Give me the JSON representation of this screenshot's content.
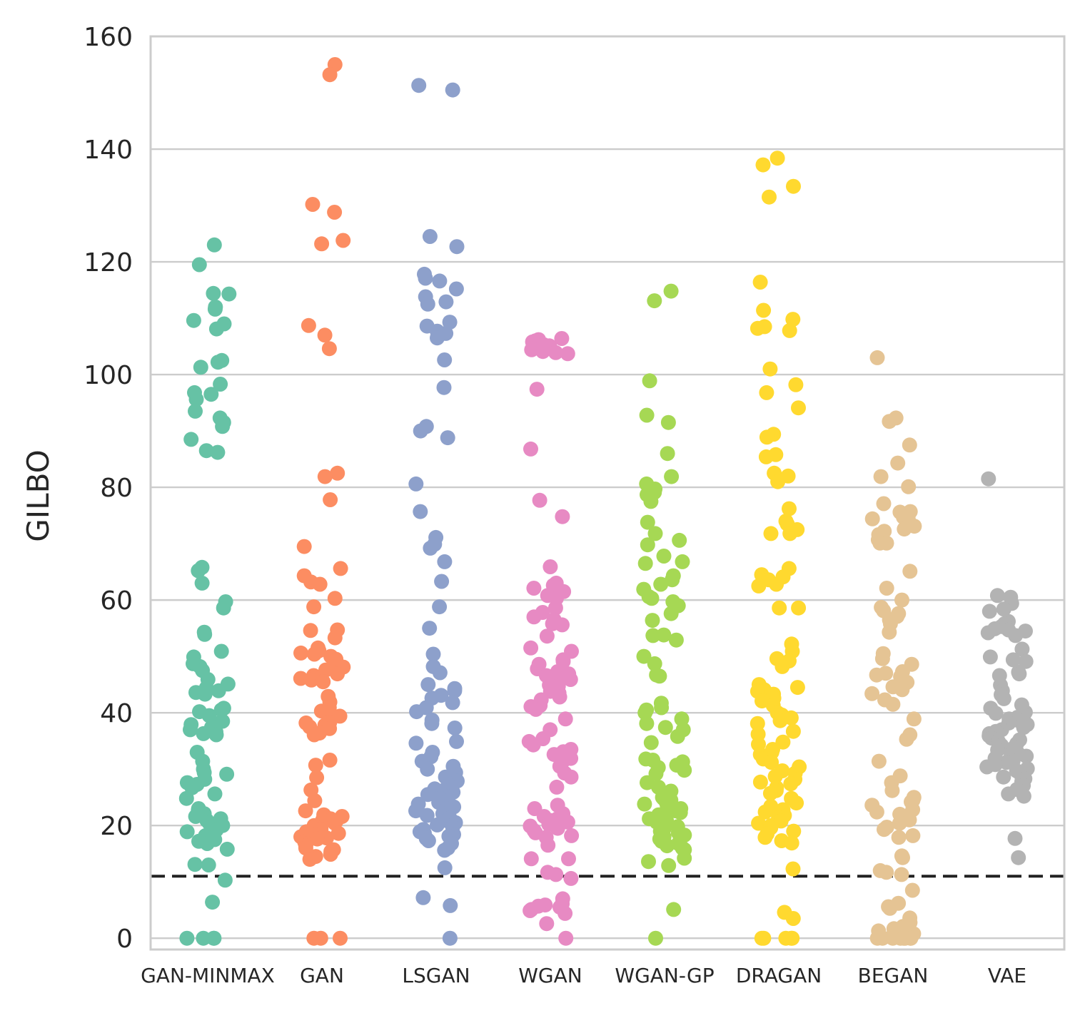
{
  "chart_data": {
    "type": "scatter",
    "subtype": "strip",
    "title": "",
    "xlabel": "",
    "ylabel": "GILBO",
    "ylim": [
      -2,
      160
    ],
    "yticks": [
      0,
      20,
      40,
      60,
      80,
      100,
      120,
      140,
      160
    ],
    "grid": "horizontal",
    "reference_line": {
      "y": 11,
      "style": "dashed",
      "color": "#222222"
    },
    "categories": [
      "GAN-MINMAX",
      "GAN",
      "LSGAN",
      "WGAN",
      "WGAN-GP",
      "DRAGAN",
      "BEGAN",
      "VAE"
    ],
    "series": [
      {
        "name": "GAN-MINMAX",
        "color": "#66c2a5",
        "values": [
          123,
          119.5,
          114.4,
          114.3,
          112,
          111.6,
          109.6,
          109,
          108.1,
          102.5,
          102.2,
          101.3,
          98.3,
          96.8,
          96.5,
          95.6,
          93.5,
          92.3,
          91.5,
          90.8,
          88.5,
          86.5,
          86.2,
          65.8,
          65.2,
          63,
          59.7,
          58.6,
          54.3,
          53.9,
          50.9,
          49.9,
          48.7,
          48.2,
          47.5,
          45.9,
          45.1,
          44.4,
          43.9,
          43.6,
          43.3,
          40.8,
          40.5,
          40.2,
          39.5,
          38.5,
          38.1,
          37.9,
          37.4,
          37,
          36.6,
          36.3,
          36.1,
          33,
          31.4,
          30,
          29.4,
          29.1,
          28.2,
          27.6,
          27.3,
          26.7,
          25.6,
          24.8,
          23,
          22.7,
          22.1,
          21.6,
          21.2,
          20.9,
          20.4,
          20,
          19.7,
          19.2,
          18.9,
          18.5,
          18.2,
          17.8,
          17.5,
          17.2,
          16.8,
          15.8,
          13.1,
          13,
          10.3,
          6.4,
          0,
          0,
          0,
          0
        ]
      },
      {
        "name": "GAN",
        "color": "#fc8d62",
        "values": [
          155,
          153.2,
          130.2,
          128.8,
          123.8,
          123.2,
          108.7,
          107,
          104.6,
          82.5,
          81.9,
          77.8,
          69.5,
          65.6,
          64.3,
          63.2,
          62.8,
          60.3,
          58.8,
          54.7,
          54.6,
          53.3,
          51.5,
          51,
          50.6,
          50.4,
          50,
          49.5,
          49.2,
          48.1,
          47.6,
          46.9,
          46.6,
          46.1,
          45.8,
          45.5,
          42.9,
          41.9,
          40.9,
          40.3,
          39.9,
          39.4,
          38.3,
          38.2,
          37.8,
          37.5,
          37.2,
          36.4,
          36.1,
          31.6,
          30.7,
          28.5,
          26.3,
          24.4,
          22.6,
          21.9,
          21.6,
          21.2,
          21,
          20.7,
          20.4,
          20,
          19.5,
          19.3,
          18.9,
          18.6,
          18.3,
          18,
          17.8,
          17.6,
          17.1,
          16.8,
          16.4,
          16,
          15.7,
          15.4,
          14.9,
          14.5,
          14,
          0,
          0,
          0
        ]
      },
      {
        "name": "LSGAN",
        "color": "#8da0cb",
        "values": [
          151.3,
          150.5,
          124.5,
          122.7,
          117.8,
          117.1,
          116.6,
          115.2,
          113.8,
          112.9,
          112.5,
          109.3,
          108.6,
          107.7,
          107.3,
          106.5,
          102.6,
          97.7,
          90.8,
          90,
          88.8,
          80.6,
          75.7,
          71.1,
          69.9,
          69.2,
          66.8,
          63.3,
          58.8,
          55,
          50.4,
          48.2,
          47.1,
          45,
          44.3,
          43.9,
          43.1,
          42.6,
          41.8,
          40.9,
          40.2,
          38.7,
          38.1,
          37.3,
          34.9,
          34.6,
          33,
          32.2,
          31.4,
          30.5,
          30,
          29.4,
          28.6,
          27.9,
          27.2,
          26.5,
          26.2,
          25.9,
          25.5,
          25.1,
          24.8,
          24.5,
          24.1,
          23.8,
          23.3,
          23,
          22.6,
          22.1,
          21.8,
          21.3,
          20.9,
          20.5,
          20.1,
          19.7,
          19.3,
          18.9,
          18.6,
          18.4,
          18.1,
          17.7,
          17.3,
          16.8,
          16,
          15.6,
          12.5,
          7.2,
          5.8,
          0
        ]
      },
      {
        "name": "WGAN",
        "color": "#e78ac3",
        "values": [
          106.4,
          106.2,
          106,
          105.8,
          105.5,
          105.3,
          105.1,
          104.8,
          104.4,
          104.1,
          103.9,
          103.7,
          97.4,
          86.8,
          77.7,
          74.8,
          65.9,
          63,
          62.6,
          62.1,
          61.5,
          60.8,
          60.3,
          58.6,
          57.8,
          57,
          56.5,
          55.8,
          55.6,
          53.6,
          51.5,
          50.9,
          49.4,
          49.1,
          48.6,
          47.8,
          47.3,
          46.9,
          46.6,
          46.2,
          45.9,
          45.4,
          44.9,
          44.7,
          44.3,
          43.8,
          43.5,
          42.8,
          42.3,
          41.3,
          41.1,
          40.6,
          38.9,
          37,
          35.4,
          34.9,
          34.3,
          33.5,
          33.1,
          32.6,
          31.9,
          31.4,
          30.5,
          29.3,
          28.6,
          26.8,
          23.6,
          23,
          22.1,
          21.6,
          21.2,
          20.9,
          20.6,
          20.2,
          19.9,
          19.5,
          19.1,
          18.7,
          18.2,
          17.9,
          16.5,
          14.1,
          14.1,
          11.7,
          11.3,
          10.6,
          7,
          6.1,
          5.9,
          5.7,
          5.5,
          5.1,
          4.9,
          4.4,
          2.6,
          0
        ]
      },
      {
        "name": "WGAN-GP",
        "color": "#a6d854",
        "values": [
          114.8,
          113.1,
          98.9,
          92.8,
          91.5,
          86,
          81.9,
          80.6,
          79.7,
          79.1,
          78.7,
          77.5,
          73.8,
          71.8,
          70.6,
          69.8,
          67.8,
          66.8,
          66.5,
          64.3,
          63.6,
          62.8,
          61.9,
          60.6,
          60.3,
          59.7,
          59,
          57.6,
          56.4,
          53.8,
          53.7,
          52.9,
          50,
          48.7,
          46.7,
          46.5,
          41.7,
          40.9,
          40.5,
          40,
          38.9,
          38.1,
          37.4,
          37,
          35.8,
          34.7,
          31.8,
          31.6,
          31.3,
          30.7,
          30.3,
          29.8,
          29.2,
          27.6,
          26.8,
          26.1,
          25.5,
          25,
          24.8,
          24.5,
          24.2,
          23.8,
          23.4,
          23,
          22.6,
          22.3,
          21.9,
          21.6,
          21.2,
          20.9,
          20.6,
          20.2,
          19.8,
          19.4,
          19,
          18.7,
          18.3,
          18,
          17.6,
          17.2,
          16.8,
          16.4,
          16,
          15.7,
          14.2,
          13.6,
          12.9,
          5.1,
          0
        ]
      },
      {
        "name": "DRAGAN",
        "color": "#ffd92f",
        "values": [
          138.4,
          137.2,
          133.4,
          131.5,
          116.4,
          111.4,
          109.8,
          108.5,
          108.2,
          107.8,
          101,
          98.2,
          96.8,
          94.1,
          89.4,
          88.9,
          85.8,
          85.4,
          82.5,
          82,
          81,
          76.2,
          74,
          73.5,
          72.5,
          71.8,
          71.8,
          65.6,
          64.5,
          64.1,
          63.6,
          62.8,
          62.5,
          58.6,
          58.6,
          52.2,
          50.9,
          49.6,
          49.2,
          48.2,
          45,
          44.5,
          44.1,
          43.8,
          43.3,
          42.6,
          42.1,
          41.3,
          40,
          39.6,
          39.1,
          38.6,
          38.1,
          36.7,
          36.2,
          34.8,
          34.4,
          33.5,
          33,
          32.6,
          31.8,
          31.2,
          30.4,
          29.7,
          29.3,
          28.7,
          28.2,
          27.7,
          27.4,
          26.7,
          26.2,
          25.7,
          24.8,
          24,
          23.4,
          22.8,
          22.4,
          21.8,
          21.4,
          20.8,
          20.4,
          20,
          19.6,
          19,
          18.5,
          17.9,
          17.3,
          16.9,
          12.3,
          4.6,
          3.5,
          0,
          0,
          0,
          0,
          0
        ]
      },
      {
        "name": "BEGAN",
        "color": "#e5c494",
        "values": [
          103,
          92.3,
          91.7,
          87.5,
          84.3,
          81.9,
          80.1,
          77.1,
          75.7,
          75.6,
          74.8,
          74.7,
          74.4,
          73.7,
          73.1,
          72.6,
          72.2,
          71.6,
          70.7,
          70.1,
          70.1,
          65.1,
          62.1,
          60,
          58.7,
          58.1,
          57.6,
          57.1,
          56.5,
          55.8,
          54.3,
          50.5,
          49.6,
          48.6,
          47.3,
          47,
          46.7,
          46.4,
          45.4,
          44.6,
          44.1,
          43.4,
          42.3,
          41.5,
          38.9,
          36.1,
          35.3,
          31.4,
          28.8,
          27.6,
          26.2,
          25,
          24.5,
          24.2,
          23.6,
          22.8,
          22.4,
          22,
          21.6,
          21,
          20.4,
          19.7,
          19.3,
          18.2,
          17.9,
          14.6,
          14.3,
          12,
          11.7,
          11.3,
          8.5,
          6.2,
          5.6,
          5.3,
          3.6,
          2.8,
          2.1,
          1.7,
          1.3,
          0.8,
          0.5,
          0.2,
          0,
          0,
          0,
          0,
          0,
          0,
          0,
          0
        ]
      },
      {
        "name": "VAE",
        "color": "#b3b3b3",
        "values": [
          81.5,
          60.8,
          60.5,
          59.4,
          58.4,
          58,
          56.2,
          55.8,
          55.3,
          54.9,
          54.7,
          54.5,
          54.2,
          53.7,
          51.3,
          49.9,
          49.4,
          49.1,
          47.2,
          46.9,
          46.6,
          44.9,
          43.9,
          43.2,
          42.5,
          41.4,
          40.8,
          40.1,
          39.9,
          39.6,
          39.2,
          38.9,
          38.6,
          38.2,
          37.9,
          37.4,
          37,
          36.7,
          36.3,
          35.9,
          35.5,
          35.2,
          34.9,
          34.5,
          34.2,
          33.8,
          33.4,
          33,
          32.6,
          32.3,
          31.9,
          31.5,
          31.2,
          30.8,
          30.4,
          30.1,
          29.7,
          29.3,
          28.6,
          28.3,
          27.8,
          27.1,
          26.4,
          25.6,
          25.2,
          17.7,
          14.3
        ]
      }
    ]
  }
}
